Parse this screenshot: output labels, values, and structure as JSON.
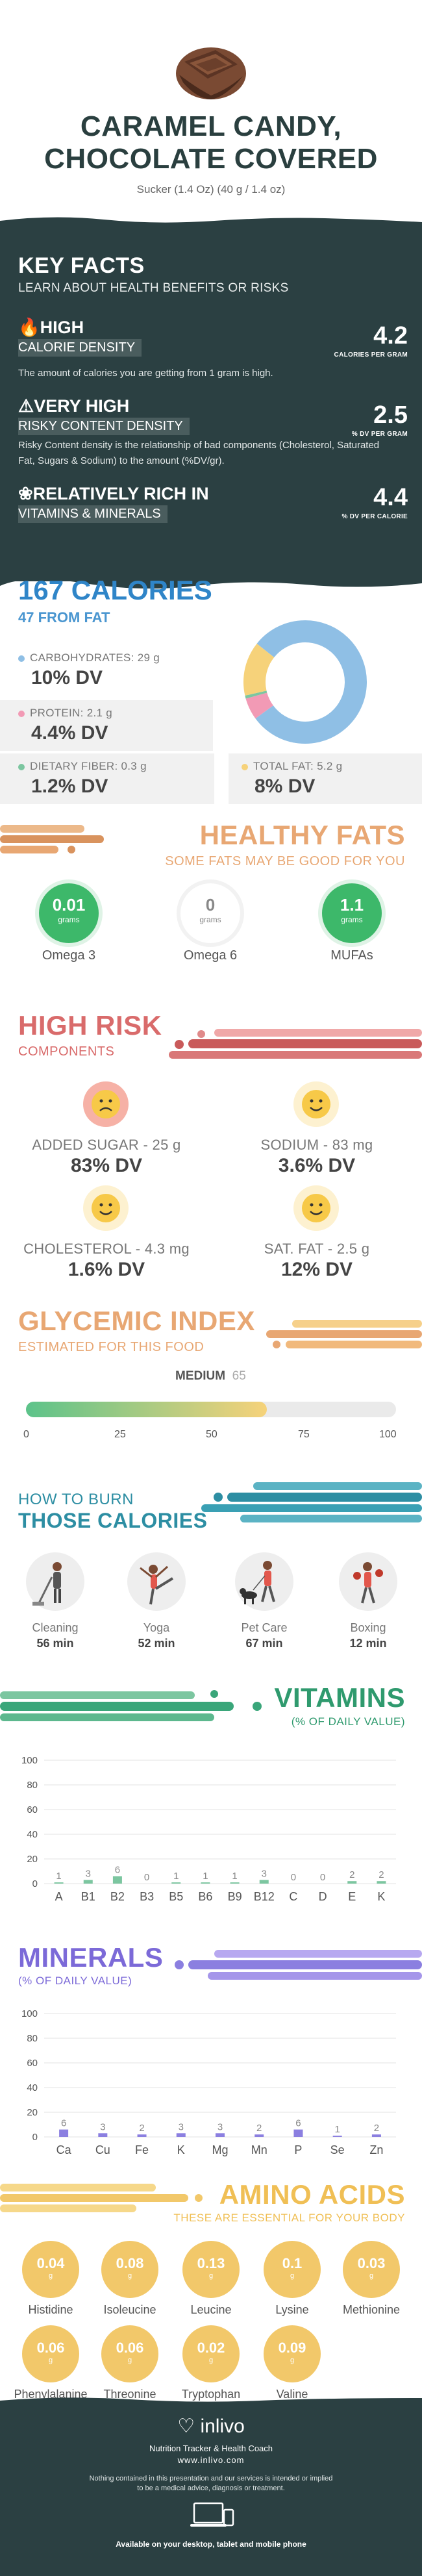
{
  "header": {
    "title_line1": "CARAMEL CANDY,",
    "title_line2": "CHOCOLATE COVERED",
    "subtitle": "Sucker (1.4 Oz) (40 g / 1.4 oz)"
  },
  "key_facts": {
    "title": "KEY FACTS",
    "subtitle": "LEARN ABOUT HEALTH BENEFITS OR RISKS",
    "items": [
      {
        "head": "HIGH",
        "tag": "CALORIE DENSITY",
        "desc": "The amount of calories you are getting from 1 gram is high.",
        "value": "4.2",
        "unit": "CALORIES PER GRAM"
      },
      {
        "head": "VERY HIGH",
        "tag": "RISKY CONTENT DENSITY",
        "desc": "Risky Content density is the relationship of bad components (Cholesterol, Saturated Fat, Sugars & Sodium) to the amount (%DV/gr).",
        "value": "2.5",
        "unit": "% DV PER GRAM"
      },
      {
        "head": "RELATIVELY RICH  IN",
        "tag": "VITAMINS & MINERALS",
        "desc": "",
        "value": "4.4",
        "unit": "% DV PER CALORIE"
      }
    ]
  },
  "calories": {
    "title": "167 CALORIES",
    "subtitle": "47 FROM FAT",
    "items": [
      {
        "label": "CARBOHYDRATES: 29 g",
        "dv": "10% DV",
        "color": "#8fbfe5"
      },
      {
        "label": "PROTEIN: 2.1 g",
        "dv": "4.4% DV",
        "color": "#f29ab5"
      },
      {
        "label": "DIETARY FIBER: 0.3 g",
        "dv": "1.2% DV",
        "color": "#7cc6a0"
      },
      {
        "label": "TOTAL FAT: 5.2 g",
        "dv": "8% DV",
        "color": "#f6d27a"
      }
    ],
    "donut": [
      {
        "name": "carbs",
        "value": 29,
        "color": "#8fbfe5"
      },
      {
        "name": "protein",
        "value": 2.1,
        "color": "#f29ab5"
      },
      {
        "name": "fiber",
        "value": 0.3,
        "color": "#7cc6a0"
      },
      {
        "name": "fat",
        "value": 5.2,
        "color": "#f6d27a"
      }
    ]
  },
  "healthy_fats": {
    "title": "HEALTHY FATS",
    "subtitle": "SOME FATS MAY BE GOOD FOR YOU",
    "items": [
      {
        "value": "0.01",
        "unit": "grams",
        "name": "Omega 3",
        "color": "#3db86a"
      },
      {
        "value": "0",
        "unit": "grams",
        "name": "Omega 6",
        "color": "#ffffff"
      },
      {
        "value": "1.1",
        "unit": "grams",
        "name": "MUFAs",
        "color": "#3db86a"
      }
    ]
  },
  "high_risk": {
    "title": "HIGH RISK",
    "subtitle": "COMPONENTS",
    "items": [
      {
        "label": "ADDED SUGAR - 25 g",
        "dv": "83% DV",
        "face": "sad"
      },
      {
        "label": "SODIUM - 83 mg",
        "dv": "3.6% DV",
        "face": "happy"
      },
      {
        "label": "CHOLESTEROL - 4.3 mg",
        "dv": "1.6% DV",
        "face": "happy"
      },
      {
        "label": "SAT. FAT - 2.5 g",
        "dv": "12% DV",
        "face": "happy"
      }
    ]
  },
  "glycemic": {
    "title": "GLYCEMIC INDEX",
    "subtitle": "ESTIMATED FOR THIS FOOD",
    "level": "MEDIUM",
    "value": "65",
    "value_num": 65,
    "ticks": [
      "0",
      "25",
      "50",
      "75",
      "100"
    ]
  },
  "burn": {
    "title_line1": "HOW TO BURN",
    "title_line2": "THOSE CALORIES",
    "items": [
      {
        "name": "Cleaning",
        "minutes": "56 min",
        "icon": "cleaning-icon"
      },
      {
        "name": "Yoga",
        "minutes": "52 min",
        "icon": "yoga-icon"
      },
      {
        "name": "Pet Care",
        "minutes": "67 min",
        "icon": "pet-care-icon"
      },
      {
        "name": "Boxing",
        "minutes": "12 min",
        "icon": "boxing-icon"
      }
    ]
  },
  "vitamins": {
    "title": "VITAMINS",
    "subtitle": "(% OF DAILY VALUE)",
    "chart_data": {
      "type": "bar",
      "categories": [
        "A",
        "B1",
        "B2",
        "B3",
        "B5",
        "B6",
        "B9",
        "B12",
        "C",
        "D",
        "E",
        "K"
      ],
      "values": [
        1,
        3,
        6,
        0,
        1,
        1,
        1,
        3,
        0,
        0,
        2,
        2
      ],
      "labels": [
        "1",
        "3",
        "6",
        "0",
        "1",
        "1",
        "1",
        "3",
        "0",
        "0",
        "2",
        "2"
      ],
      "ylim": [
        0,
        100
      ],
      "yticks": [
        "0",
        "20",
        "40",
        "60",
        "80",
        "100"
      ],
      "color": "#7cc6a0",
      "grid": true
    }
  },
  "minerals": {
    "title": "MINERALS",
    "subtitle": "(% OF DAILY VALUE)",
    "chart_data": {
      "type": "bar",
      "categories": [
        "Ca",
        "Cu",
        "Fe",
        "K",
        "Mg",
        "Mn",
        "P",
        "Se",
        "Zn"
      ],
      "values": [
        6,
        3,
        2,
        3,
        3,
        2,
        6,
        1,
        2
      ],
      "labels": [
        "6",
        "3",
        "2",
        "3",
        "3",
        "2",
        "6",
        "1",
        "2"
      ],
      "ylim": [
        0,
        100
      ],
      "yticks": [
        "0",
        "20",
        "40",
        "60",
        "80",
        "100"
      ],
      "color": "#8b7fe0",
      "grid": true
    }
  },
  "amino": {
    "title": "AMINO ACIDS",
    "subtitle": "THESE ARE ESSENTIAL FOR YOUR BODY",
    "unit": "g",
    "items": [
      {
        "value": "0.04",
        "name": "Histidine"
      },
      {
        "value": "0.08",
        "name": "Isoleucine"
      },
      {
        "value": "0.13",
        "name": "Leucine"
      },
      {
        "value": "0.1",
        "name": "Lysine"
      },
      {
        "value": "0.03",
        "name": "Methionine"
      },
      {
        "value": "0.06",
        "name": "Phenylalanine"
      },
      {
        "value": "0.06",
        "name": "Threonine"
      },
      {
        "value": "0.02",
        "name": "Tryptophan"
      },
      {
        "value": "0.09",
        "name": "Valine"
      }
    ]
  },
  "footer": {
    "brand": "inlivo",
    "tagline": "Nutrition Tracker & Health Coach",
    "url": "www.inlivo.com",
    "disclaimer_line1": "Nothing contained in this presentation and our services is intended or implied",
    "disclaimer_line2": "to be a medical advice, diagnosis or treatment.",
    "available": "Available on your desktop, tablet and mobile phone"
  }
}
